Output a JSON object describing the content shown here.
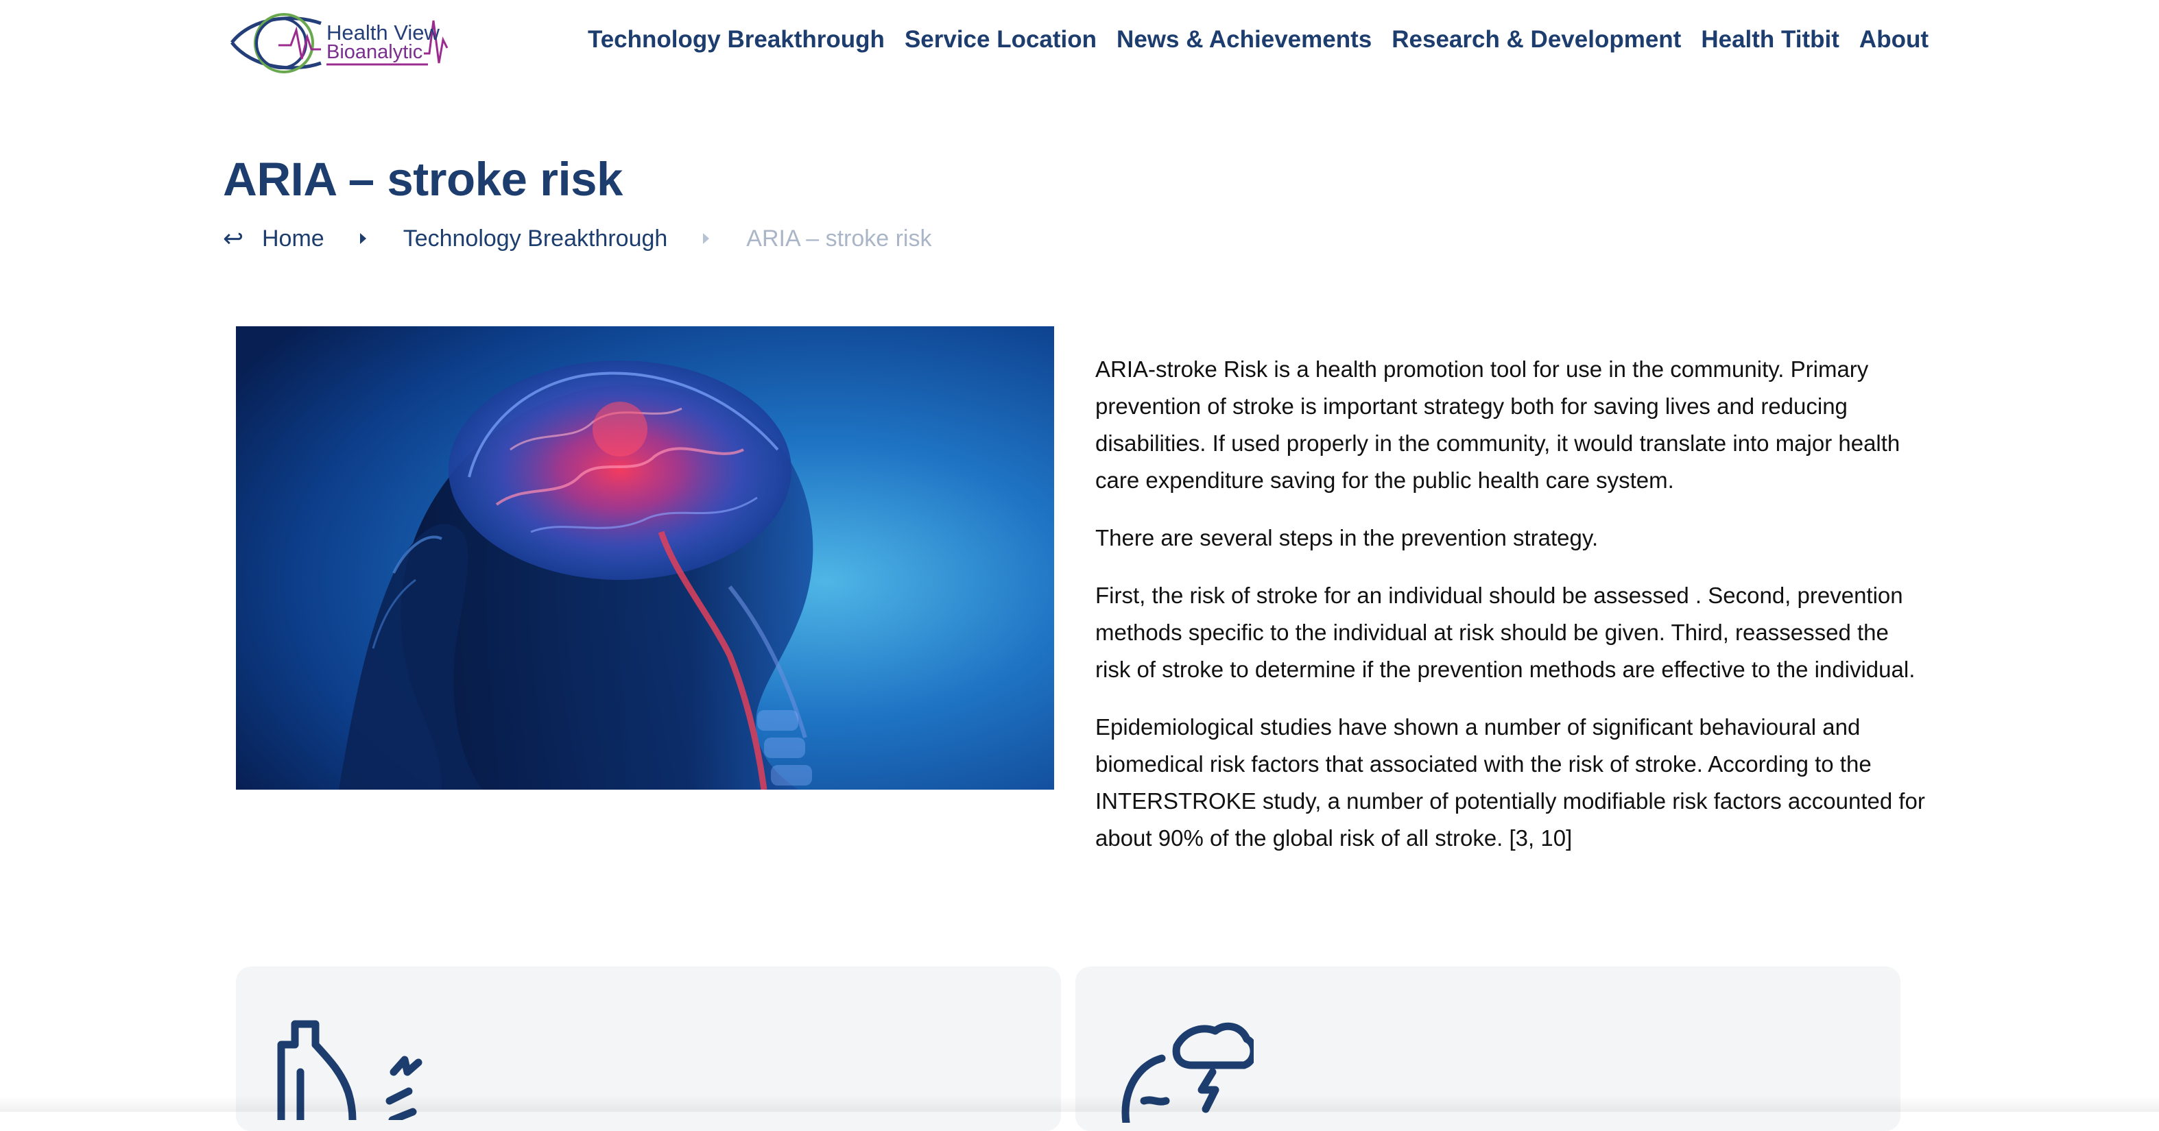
{
  "header": {
    "logo": {
      "line1": "Health View",
      "line2": "Bioanalytic",
      "icon": "eye-pulse-logo-icon"
    },
    "nav": [
      "Technology Breakthrough",
      "Service Location",
      "News & Achievements",
      "Research & Development",
      "Health Titbit",
      "About"
    ]
  },
  "page": {
    "title": "ARIA – stroke risk",
    "breadcrumb": {
      "back_icon": "return-arrow-icon",
      "home": "Home",
      "parent": "Technology Breakthrough",
      "current": "ARIA – stroke risk"
    }
  },
  "hero": {
    "icon": "brain-headache-illustration"
  },
  "content": {
    "paragraphs": [
      "ARIA-stroke Risk is a health promotion tool for use in the community. Primary prevention of stroke is important strategy both for saving lives and reducing disabilities. If used properly in the community, it would translate into major health care expenditure saving for the public health care system.",
      "There are several steps in the prevention strategy.",
      "First, the risk of stroke for an individual should be assessed . Second, prevention methods specific to the individual at risk should be given. Third, reassessed the risk of stroke to determine if the prevention methods are effective to the individual.",
      "Epidemiological studies have shown a number of significant behavioural and biomedical risk factors that associated with the risk of stroke. According to the INTERSTROKE study, a number of potentially modifiable risk factors accounted for about 90% of the global risk of all stroke. [3, 10]"
    ]
  },
  "cards": [
    {
      "icon": "heart-pulse-icon"
    },
    {
      "icon": "head-storm-icon"
    }
  ],
  "colors": {
    "primary": "#1c3d6e",
    "muted": "#aab6c8",
    "card_bg": "#f3f5f7",
    "logo_purple": "#7a2e8e",
    "logo_green": "#6aa84f"
  }
}
